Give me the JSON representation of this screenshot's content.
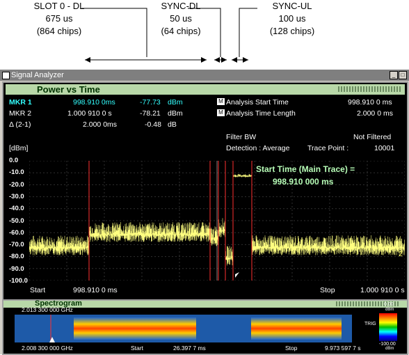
{
  "annotations": {
    "slot0": [
      "SLOT 0 - DL",
      "675 us",
      "(864 chips)"
    ],
    "sync_dl": [
      "SYNC-DL",
      "50 us",
      "(64 chips)"
    ],
    "sync_ul": [
      "SYNC-UL",
      "100 us",
      "(128 chips)"
    ]
  },
  "window": {
    "title": "Signal Analyzer",
    "min": "_",
    "max": "□"
  },
  "pane": {
    "title": "Power vs Time",
    "markers": [
      {
        "label": "MKR 1",
        "time": "998.910 0ms",
        "value": "-77.73",
        "unit": "dBm"
      },
      {
        "label": "MKR 2",
        "time": "1.000 910 0   s",
        "value": "-78.21",
        "unit": "dBm"
      },
      {
        "label": "Δ (2-1)",
        "time": "2.000 0ms",
        "value": "-0.48",
        "unit": "dB"
      }
    ],
    "analysis": [
      {
        "label": "Analysis Start Time",
        "value": "998.910 0 ms"
      },
      {
        "label": "Analysis Time Length",
        "value": "2.000 0 ms"
      }
    ],
    "m_icon": "M",
    "filter_bw_label": "Filter BW",
    "filter_bw_value": "Not Filtered",
    "detection": "Detection :  Average",
    "trace_point_label": "Trace Point :",
    "trace_point_value": "10001",
    "y_unit": "[dBm]",
    "y_ticks": [
      "0.0",
      "-10.0",
      "-20.0",
      "-30.0",
      "-40.0",
      "-50.0",
      "-60.0",
      "-70.0",
      "-80.0",
      "-90.0",
      "-100.0"
    ],
    "start_time_title": "Start Time (Main Trace) =",
    "start_time_value": "998.910 000 ms",
    "x_start_label": "Start",
    "x_start_value": "998.910 0 ms",
    "x_stop_label": "Stop",
    "x_stop_value": "1.000 910 0 s",
    "right_marker": "2"
  },
  "spectrogram": {
    "title": "Spectrogram",
    "freq_top": "2.013 300 000 GHz",
    "freq_bottom": "2.008 300 000 GHz",
    "start_label": "Start",
    "start_value": "26.397 7 ms",
    "stop_label": "Stop",
    "stop_value": "9.973 597 7 s",
    "scale_top": "0.00",
    "scale_top_unit": "dBm",
    "scale_bottom": "-100.00",
    "scale_bottom_unit": "dBm",
    "trig": "TRIG"
  },
  "colors": {
    "trace": "#ffff80",
    "marker_line": "#ff3030",
    "panel_title": "#b8d8a8"
  }
}
